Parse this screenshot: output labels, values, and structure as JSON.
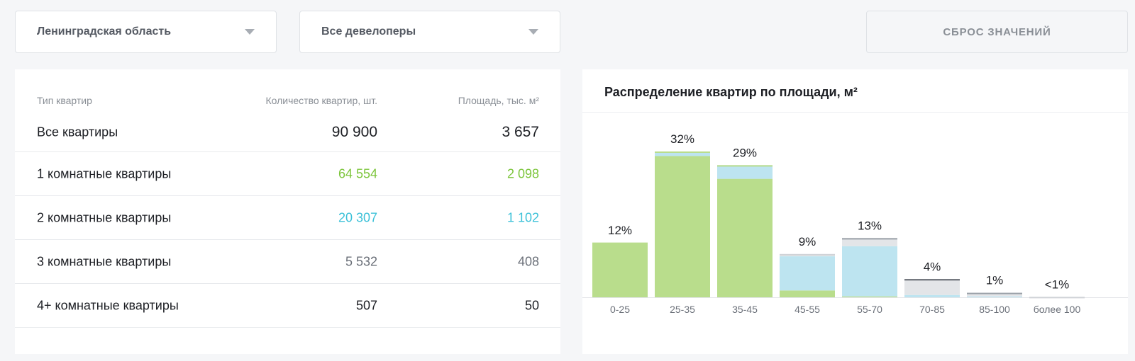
{
  "filters": {
    "region": "Ленинградская область",
    "developer": "Все девелоперы",
    "reset_label": "СБРОС ЗНАЧЕНИЙ"
  },
  "table": {
    "headers": [
      "Тип квартир",
      "Количество квартир, шт.",
      "Площадь, тыс. м²"
    ],
    "total": {
      "label": "Все квартиры",
      "count": "90 900",
      "area": "3 657"
    },
    "rows": [
      {
        "label": "1 комнатные квартиры",
        "count": "64 554",
        "area": "2 098"
      },
      {
        "label": "2 комнатные квартиры",
        "count": "20 307",
        "area": "1 102"
      },
      {
        "label": "3 комнатные квартиры",
        "count": "5 532",
        "area": "408"
      },
      {
        "label": "4+ комнатные квартиры",
        "count": "507",
        "area": "50"
      }
    ],
    "colors": {
      "green": "#7cc53b",
      "cyan": "#3cc1d8",
      "grey": "#6b7079",
      "dark": "#1d1f24"
    }
  },
  "chart_data": {
    "type": "bar",
    "title": "Распределение квартир по площади, м²",
    "categories": [
      "0-25",
      "25-35",
      "35-45",
      "45-55",
      "55-70",
      "70-85",
      "85-100",
      "более 100"
    ],
    "labels": [
      "12%",
      "32%",
      "29%",
      "9%",
      "13%",
      "4%",
      "1%",
      "<1%"
    ],
    "series": [
      {
        "color": "#b9dd8c",
        "values": [
          12,
          31,
          26,
          1.5,
          0.2,
          0,
          0,
          0
        ]
      },
      {
        "color": "#bde4f0",
        "values": [
          0,
          1,
          3,
          7.5,
          11,
          0.5,
          0.2,
          0
        ]
      },
      {
        "color": "#e3e5e8",
        "values": [
          0,
          0,
          0,
          0.5,
          1.8,
          3.5,
          0.8,
          0.1
        ]
      }
    ],
    "edge_colors": [
      "#b9dd8c",
      "#b9dd8c",
      "#b9dd8c",
      "#d0d3d7",
      "#9aa0a8",
      "#5e636b",
      "#9aa0a8",
      "#d0d3d7"
    ],
    "ylim": [
      0,
      32
    ],
    "stacked": true,
    "grid": false
  }
}
